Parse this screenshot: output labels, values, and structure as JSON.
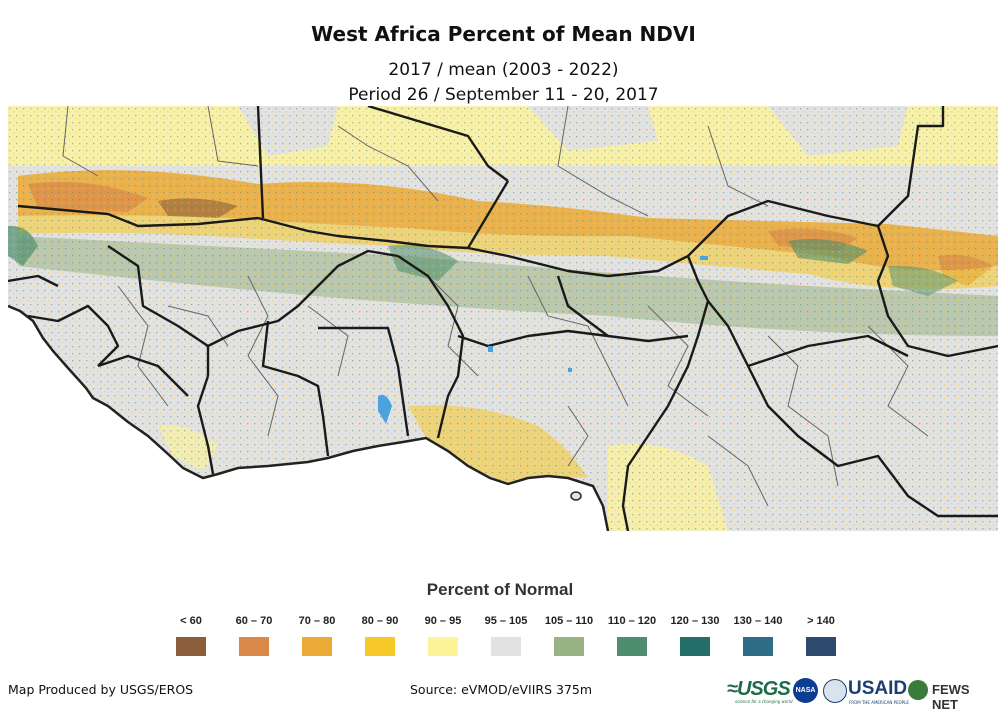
{
  "header": {
    "title": "West Africa Percent of Mean NDVI",
    "subtitle_line1": "2017 / mean (2003 - 2022)",
    "subtitle_line2": "Period 26 / September 11 - 20, 2017"
  },
  "legend": {
    "title": "Percent of Normal",
    "classes": [
      {
        "label": "< 60",
        "color": "#8c5e3c"
      },
      {
        "label": "60 – 70",
        "color": "#d98a4a"
      },
      {
        "label": "70 – 80",
        "color": "#eba935"
      },
      {
        "label": "80 – 90",
        "color": "#f6c928"
      },
      {
        "label": "90 – 95",
        "color": "#fdf498"
      },
      {
        "label": "95 – 105",
        "color": "#e2e2e2"
      },
      {
        "label": "105 – 110",
        "color": "#98b384"
      },
      {
        "label": "110 – 120",
        "color": "#4e8d6e"
      },
      {
        "label": "120 – 130",
        "color": "#246f6a"
      },
      {
        "label": "130 – 140",
        "color": "#2d6d85"
      },
      {
        "label": "> 140",
        "color": "#2d4a6e"
      }
    ]
  },
  "footer": {
    "credit": "Map Produced by USGS/EROS",
    "source": "Source: eVMOD/eVIIRS 375m"
  },
  "logos": {
    "usgs": "≈USGS",
    "usgs_tagline": "science for a changing world",
    "nasa": "NASA",
    "usaid": "USAID",
    "usaid_tagline": "FROM THE AMERICAN PEOPLE",
    "fews": "FEWS NET"
  }
}
